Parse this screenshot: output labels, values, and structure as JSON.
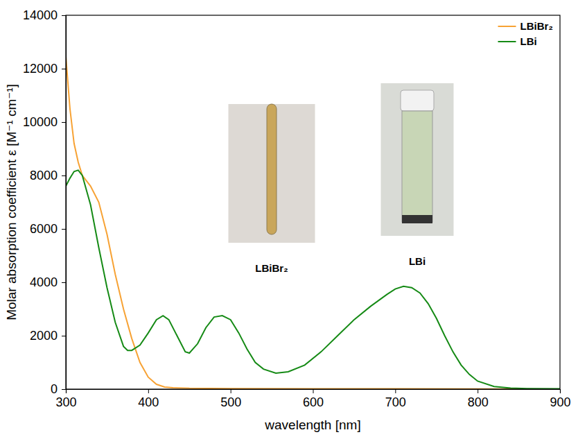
{
  "chart_data": {
    "type": "line",
    "x_label": "wavelength [nm]",
    "y_label": "Molar absorption coefficient ε [M⁻¹ cm⁻¹]",
    "xlim": [
      300,
      900
    ],
    "xticks": [
      300,
      400,
      500,
      600,
      700,
      800,
      900
    ],
    "ylim": [
      0,
      14000
    ],
    "yticks": [
      0,
      2000,
      4000,
      6000,
      8000,
      10000,
      12000,
      14000
    ],
    "grid": false,
    "legend": "upper right",
    "series": [
      {
        "name": "LBiBr₂",
        "color": "#f7a234",
        "x": [
          300,
          305,
          310,
          315,
          320,
          330,
          340,
          350,
          360,
          370,
          380,
          390,
          400,
          410,
          420,
          430,
          450,
          500,
          600,
          700,
          800,
          900
        ],
        "values": [
          12450,
          10500,
          9200,
          8500,
          8000,
          7600,
          7000,
          5800,
          4300,
          3000,
          1900,
          1000,
          450,
          180,
          80,
          50,
          30,
          20,
          10,
          10,
          5,
          0
        ]
      },
      {
        "name": "LBi",
        "color": "#158a15",
        "x": [
          300,
          305,
          310,
          315,
          320,
          330,
          340,
          350,
          360,
          370,
          375,
          380,
          390,
          400,
          410,
          418,
          425,
          435,
          445,
          450,
          460,
          470,
          480,
          490,
          500,
          510,
          520,
          530,
          540,
          555,
          570,
          590,
          610,
          630,
          650,
          670,
          690,
          700,
          710,
          720,
          730,
          740,
          750,
          760,
          770,
          780,
          790,
          800,
          820,
          840,
          860,
          900
        ],
        "values": [
          7600,
          7900,
          8150,
          8200,
          8000,
          6900,
          5300,
          3800,
          2500,
          1600,
          1450,
          1450,
          1650,
          2100,
          2600,
          2750,
          2600,
          2000,
          1400,
          1350,
          1700,
          2300,
          2700,
          2750,
          2600,
          2100,
          1500,
          1000,
          750,
          600,
          650,
          900,
          1400,
          2000,
          2600,
          3100,
          3550,
          3750,
          3850,
          3800,
          3600,
          3200,
          2650,
          2000,
          1400,
          900,
          550,
          300,
          100,
          40,
          20,
          10
        ]
      }
    ],
    "annotations": [
      {
        "text": "LBiBr₂"
      },
      {
        "text": "LBi"
      }
    ]
  }
}
